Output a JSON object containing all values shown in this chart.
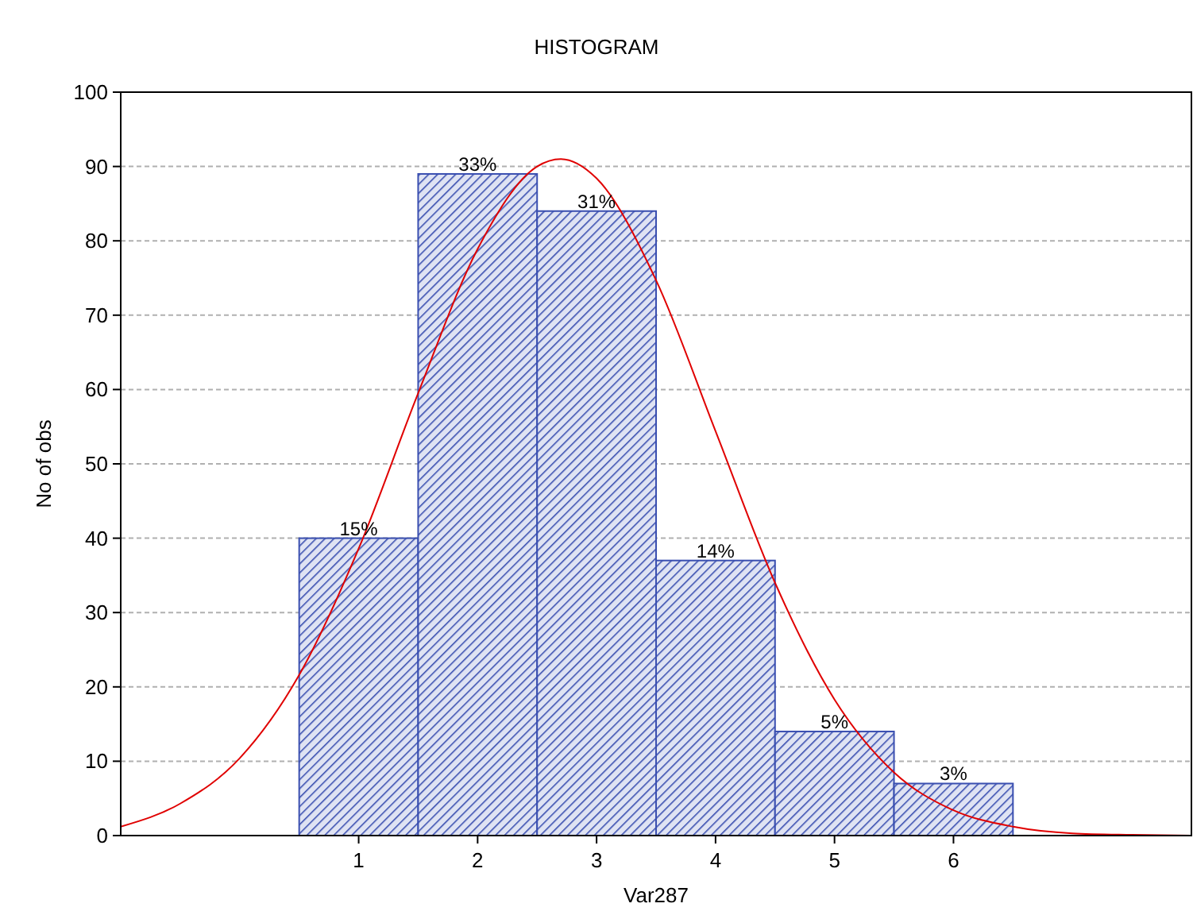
{
  "chart_data": {
    "type": "histogram",
    "title": "HISTOGRAM",
    "xlabel": "Var287",
    "ylabel": "No of obs",
    "bins": [
      0.5,
      1.5,
      2.5,
      3.5,
      4.5,
      5.5,
      6.5
    ],
    "values": [
      40,
      89,
      84,
      37,
      14,
      7
    ],
    "color": "#3a4fb0",
    "annotations": [
      {
        "text": "15%",
        "x": 1,
        "y": 40
      },
      {
        "text": "33%",
        "x": 2,
        "y": 89
      },
      {
        "text": "31%",
        "x": 3,
        "y": 84
      },
      {
        "text": "14%",
        "x": 4,
        "y": 37
      },
      {
        "text": "5%",
        "x": 5,
        "y": 14
      },
      {
        "text": "3%",
        "x": 6,
        "y": 7
      }
    ],
    "series": [
      {
        "type": "line",
        "color": "#e00000",
        "x": [
          -1,
          -0.5,
          0,
          0.5,
          1,
          1.5,
          2,
          2.5,
          2.7,
          3,
          3.5,
          4,
          4.5,
          5,
          5.5,
          6,
          6.5,
          7,
          7.5,
          8
        ],
        "values": [
          1.2,
          4.3,
          10.4,
          21.6,
          38.6,
          59.5,
          78.9,
          90,
          91,
          88.4,
          74.7,
          54.4,
          34,
          18.3,
          8.5,
          3.4,
          1.2,
          0.3,
          0.1,
          0
        ]
      }
    ],
    "xlim": [
      -1,
      8
    ],
    "xticks": [
      1,
      2,
      3,
      4,
      5,
      6
    ],
    "ylim": [
      0,
      100
    ],
    "yticks": [
      0,
      10,
      20,
      30,
      40,
      50,
      60,
      70,
      80,
      90,
      100
    ],
    "grid": "y"
  }
}
